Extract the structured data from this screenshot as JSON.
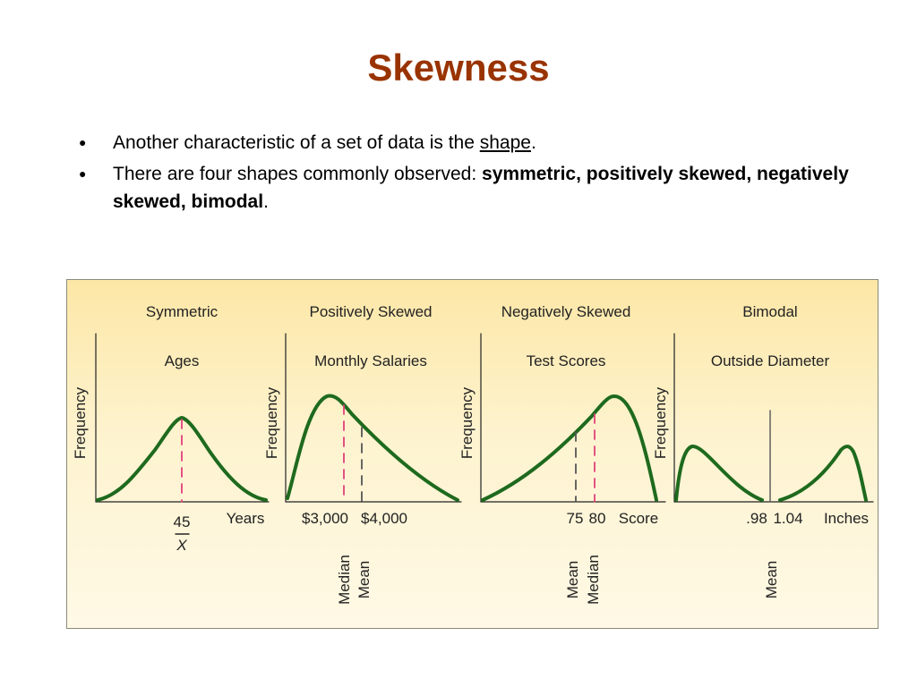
{
  "slide": {
    "title": "Skewness",
    "bullet1": {
      "prefix": "Another characteristic of a set of data is the ",
      "link": "shape",
      "suffix": "."
    },
    "bullet2": {
      "prefix": "There are four shapes commonly observed:  ",
      "bold": "symmetric,  positively skewed, negatively skewed,  bimodal",
      "suffix": "."
    }
  },
  "figure": {
    "background_colors": [
      "#fde7a6",
      "#fff9e6"
    ],
    "curve_color": "#1e6a1e",
    "median_line_color": "#e0407a",
    "mean_line_color": "#555555",
    "panels": [
      {
        "heading": "Symmetric",
        "variable": "Ages",
        "ylabel": "Frequency",
        "tick_labels": [
          "45"
        ],
        "xbar": "X",
        "unit": "Years",
        "vertical_labels": []
      },
      {
        "heading": "Positively Skewed",
        "variable": "Monthly Salaries",
        "ylabel": "Frequency",
        "tick_labels": [
          "$3,000",
          "$4,000"
        ],
        "vertical_labels": [
          "Median",
          "Mean"
        ]
      },
      {
        "heading": "Negatively Skewed",
        "variable": "Test Scores",
        "ylabel": "Frequency",
        "tick_labels": [
          "75",
          "80"
        ],
        "unit": "Score",
        "vertical_labels": [
          "Mean",
          "Median"
        ]
      },
      {
        "heading": "Bimodal",
        "variable": "Outside Diameter",
        "ylabel": "Frequency",
        "tick_labels": [
          ".98",
          "1.04"
        ],
        "unit": "Inches",
        "vertical_labels": [
          "Mean"
        ]
      }
    ]
  }
}
